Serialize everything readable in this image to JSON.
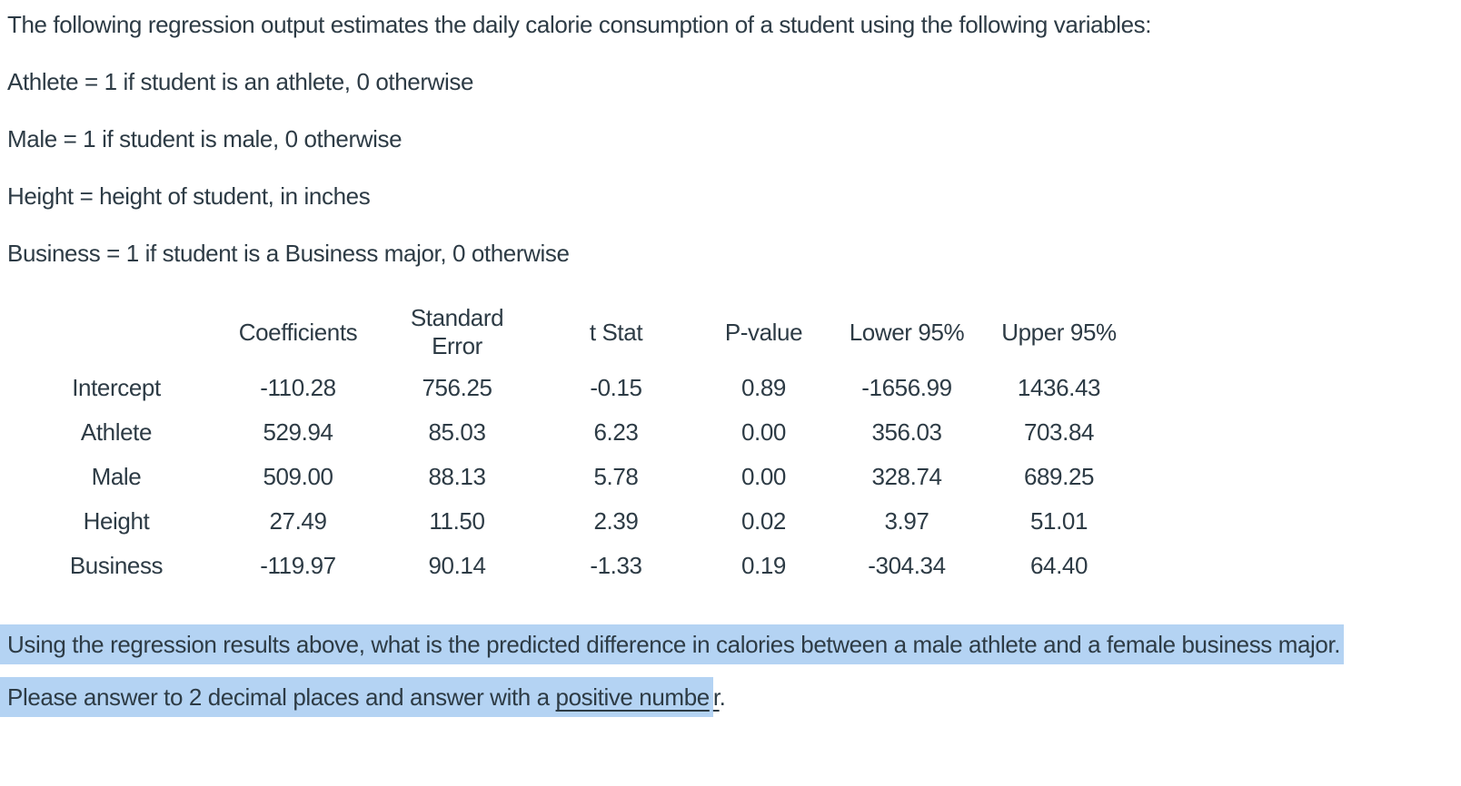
{
  "page": {
    "intro": "The following regression output estimates the daily calorie consumption of a student using the following variables:",
    "definitions": [
      "Athlete = 1 if student is an athlete, 0 otherwise",
      "Male = 1 if student is male, 0 otherwise",
      "Height = height of student, in inches",
      "Business = 1 if student is a Business major, 0 otherwise"
    ]
  },
  "table": {
    "columns": [
      "",
      "Coefficients",
      "Standard Error",
      "t Stat",
      "P-value",
      "Lower 95%",
      "Upper 95%"
    ],
    "rows": [
      {
        "label": "Intercept",
        "cells": [
          "-110.28",
          "756.25",
          "-0.15",
          "0.89",
          "-1656.99",
          "1436.43"
        ]
      },
      {
        "label": "Athlete",
        "cells": [
          "529.94",
          "85.03",
          "6.23",
          "0.00",
          "356.03",
          "703.84"
        ]
      },
      {
        "label": "Male",
        "cells": [
          "509.00",
          "88.13",
          "5.78",
          "0.00",
          "328.74",
          "689.25"
        ]
      },
      {
        "label": "Height",
        "cells": [
          "27.49",
          "11.50",
          "2.39",
          "0.02",
          "3.97",
          "51.01"
        ]
      },
      {
        "label": "Business",
        "cells": [
          "-119.97",
          "90.14",
          "-1.33",
          "0.19",
          "-304.34",
          "64.40"
        ]
      }
    ]
  },
  "question": {
    "highlighted_text": "Using the regression results above, what is the predicted difference in calories between a male athlete and a female business major."
  },
  "note": {
    "highlighted_prefix": "Please answer to 2 decimal places and answer with a ",
    "underlined_highlighted": "positive numbe",
    "underlined_tail": "r",
    "suffix": "."
  },
  "colors": {
    "text": "#2d3b45",
    "highlight": "#b4d3f3",
    "background": "#ffffff"
  }
}
